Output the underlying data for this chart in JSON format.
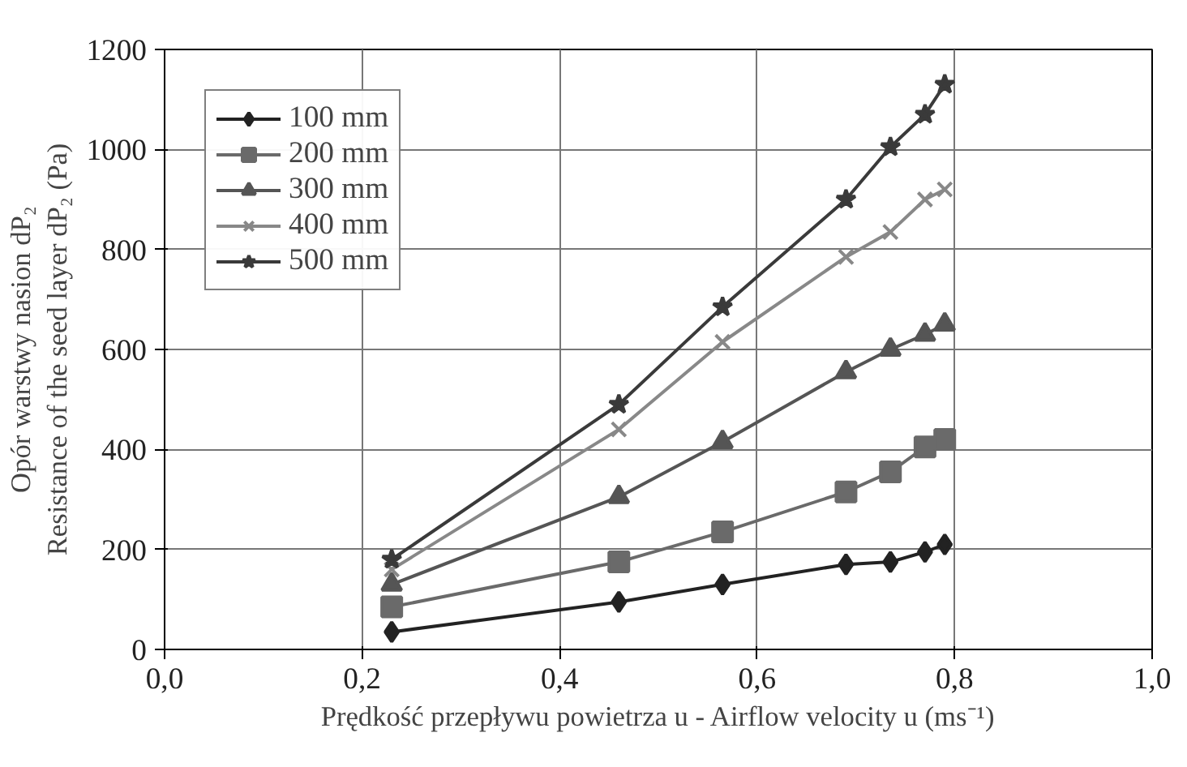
{
  "chart_data": {
    "type": "line",
    "xlabel": "Prędkość przepływu powietrza u - Airflow velocity u (ms⁻¹)",
    "ylabel": "Opór warstwy nasion dP₂\nResistance of the seed layer dP₂ (Pa)",
    "x": [
      0.23,
      0.46,
      0.565,
      0.69,
      0.735,
      0.77,
      0.79
    ],
    "series": [
      {
        "name": "100 mm",
        "color": "#222222",
        "marker": "diamond",
        "values": [
          35,
          95,
          130,
          170,
          175,
          195,
          210
        ]
      },
      {
        "name": "200 mm",
        "color": "#6a6a6a",
        "marker": "square",
        "values": [
          85,
          175,
          235,
          315,
          355,
          405,
          420
        ]
      },
      {
        "name": "300 mm",
        "color": "#555555",
        "marker": "triangle",
        "values": [
          130,
          305,
          415,
          555,
          600,
          630,
          650
        ]
      },
      {
        "name": "400 mm",
        "color": "#888888",
        "marker": "cross",
        "values": [
          160,
          440,
          615,
          785,
          835,
          900,
          920
        ]
      },
      {
        "name": "500 mm",
        "color": "#3a3a3a",
        "marker": "star",
        "values": [
          180,
          490,
          685,
          900,
          1005,
          1070,
          1130
        ]
      }
    ],
    "xlim": [
      0,
      1
    ],
    "ylim": [
      0,
      1200
    ],
    "xticks": [
      {
        "value": 0,
        "label": "0,0"
      },
      {
        "value": 0.2,
        "label": "0,2"
      },
      {
        "value": 0.4,
        "label": "0,4"
      },
      {
        "value": 0.6,
        "label": "0,6"
      },
      {
        "value": 0.8,
        "label": "0,8"
      },
      {
        "value": 1,
        "label": "1,0"
      }
    ],
    "yticks": [
      0,
      200,
      400,
      600,
      800,
      1000,
      1200
    ],
    "grid": true,
    "legend": "top left",
    "line_style": "solid"
  }
}
